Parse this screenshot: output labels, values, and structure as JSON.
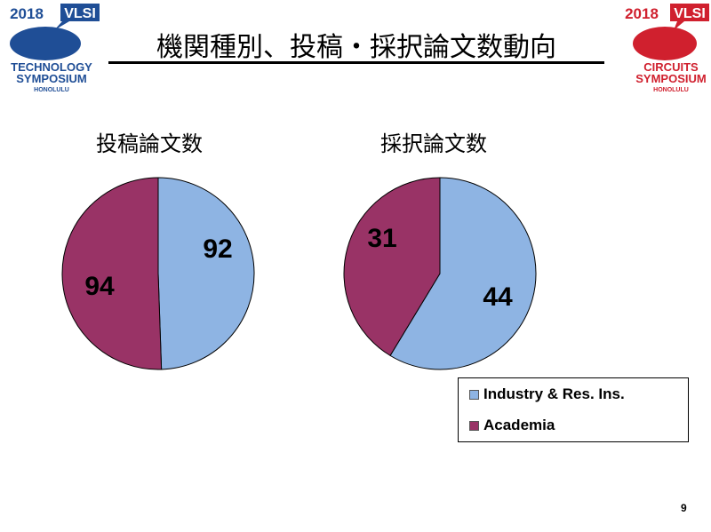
{
  "slide": {
    "title": "機関種別、投稿・採択論文数動向",
    "page_number": "9"
  },
  "logos": {
    "left": {
      "year": "2018",
      "brand": "VLSI",
      "line1": "TECHNOLOGY",
      "line2": "SYMPOSIUM",
      "place": "HONOLULU",
      "color": "#1F4E96"
    },
    "right": {
      "year": "2018",
      "brand": "VLSI",
      "line1": "CIRCUITS",
      "line2": "SYMPOSIUM",
      "place": "HONOLULU",
      "color": "#D0202E"
    }
  },
  "chart_data": [
    {
      "type": "pie",
      "title": "投稿論文数",
      "categories": [
        "Industry & Res. Ins.",
        "Academia"
      ],
      "values": [
        92,
        94
      ],
      "colors": [
        "#8EB4E3",
        "#993366"
      ],
      "start": "top",
      "direction": "clockwise"
    },
    {
      "type": "pie",
      "title": "採択論文数",
      "categories": [
        "Industry & Res. Ins.",
        "Academia"
      ],
      "values": [
        44,
        31
      ],
      "colors": [
        "#8EB4E3",
        "#993366"
      ],
      "start": "top",
      "direction": "clockwise"
    }
  ],
  "legend": {
    "items": [
      "Industry & Res. Ins.",
      "Academia"
    ],
    "placement": "bottom-right"
  }
}
